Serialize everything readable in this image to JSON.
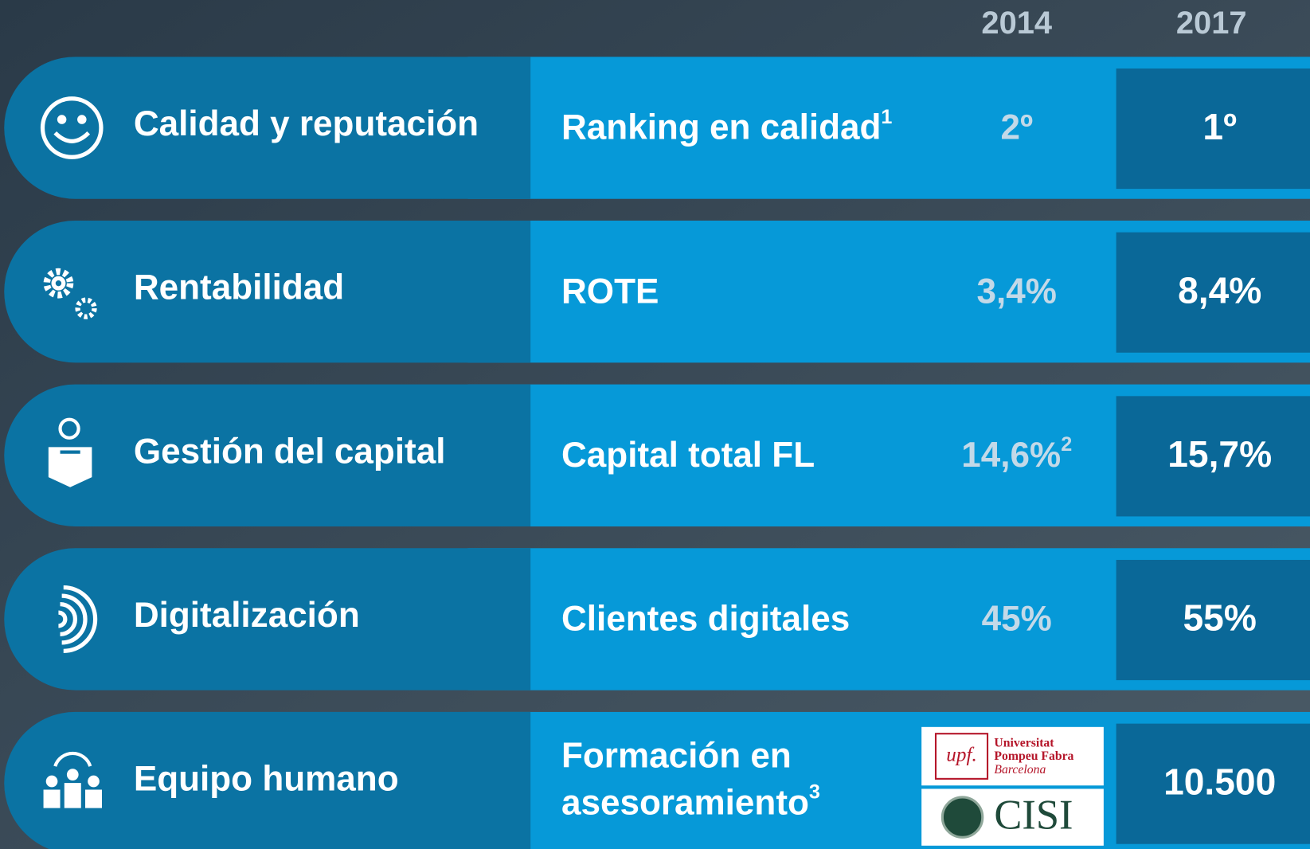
{
  "header": {
    "years": [
      "2014",
      "2017"
    ]
  },
  "rows": [
    {
      "category": "Calidad y reputación",
      "metric": [
        "Ranking en calidad"
      ],
      "note": "1",
      "value_2014": "2º",
      "value_2017": "1º"
    },
    {
      "category": "Rentabilidad",
      "metric": [
        "ROTE"
      ],
      "value_2014": "3,4%",
      "value_2017": "8,4%"
    },
    {
      "category": "Gestión del capital",
      "metric": [
        "Capital total FL"
      ],
      "value_2014": "14,6%",
      "value_2014_note": "2",
      "value_2017": "15,7%"
    },
    {
      "category": "Digitalización",
      "metric": [
        "Clientes digitales"
      ],
      "value_2014": "45%",
      "value_2017": "55%"
    },
    {
      "category": "Equipo humano",
      "metric": [
        "Formación en",
        "asesoramiento"
      ],
      "note": "3",
      "value_2017": "10.500",
      "logos": {
        "upf": "upf.",
        "upf_lines": [
          "Universitat",
          "Pompeu Fabra",
          "Barcelona"
        ],
        "cisi": "CISI"
      }
    }
  ]
}
